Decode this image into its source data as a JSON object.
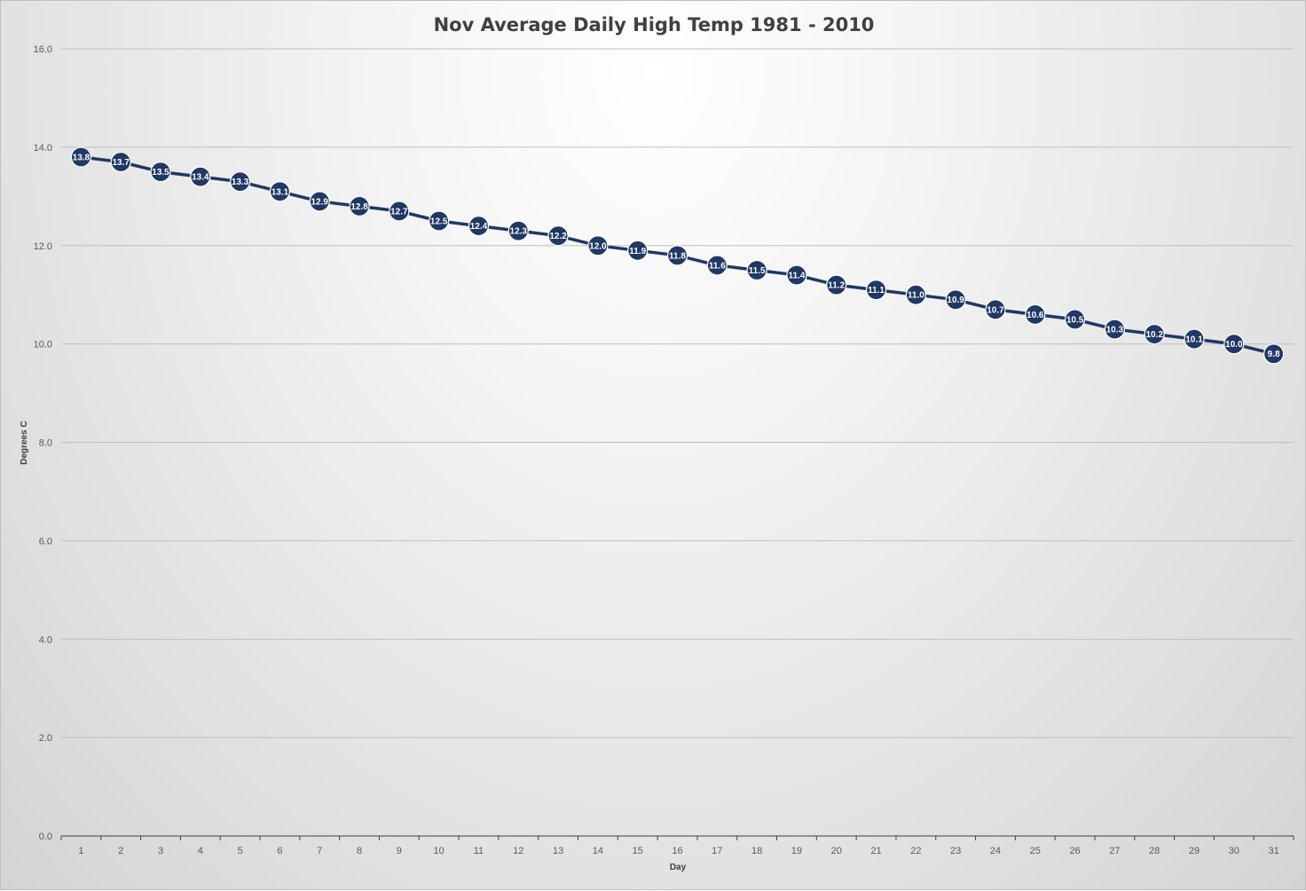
{
  "chart_data": {
    "type": "line",
    "title": "Nov Average Daily High Temp 1981 - 2010",
    "xlabel": "Day",
    "ylabel": "Degrees C",
    "ylim": [
      0,
      16
    ],
    "ytick_step": 2,
    "ytick_labels": [
      "0.0",
      "2.0",
      "4.0",
      "6.0",
      "8.0",
      "10.0",
      "12.0",
      "14.0",
      "16.0"
    ],
    "grid": true,
    "legend": "none",
    "x": [
      1,
      2,
      3,
      4,
      5,
      6,
      7,
      8,
      9,
      10,
      11,
      12,
      13,
      14,
      15,
      16,
      17,
      18,
      19,
      20,
      21,
      22,
      23,
      24,
      25,
      26,
      27,
      28,
      29,
      30,
      31
    ],
    "values": [
      13.8,
      13.7,
      13.5,
      13.4,
      13.3,
      13.1,
      12.9,
      12.8,
      12.7,
      12.5,
      12.4,
      12.3,
      12.2,
      12.0,
      11.9,
      11.8,
      11.6,
      11.5,
      11.4,
      11.2,
      11.1,
      11.0,
      10.9,
      10.7,
      10.6,
      10.5,
      10.3,
      10.2,
      10.1,
      10.0,
      9.8
    ],
    "data_labels": [
      "13.8",
      "13.7",
      "13.5",
      "13.4",
      "13.3",
      "13.1",
      "12.9",
      "12.8",
      "12.7",
      "12.5",
      "12.4",
      "12.3",
      "12.2",
      "12.0",
      "11.9",
      "11.8",
      "11.6",
      "11.5",
      "11.4",
      "11.2",
      "11.1",
      "11.0",
      "10.9",
      "10.7",
      "10.6",
      "10.5",
      "10.3",
      "10.2",
      "10.1",
      "10.0",
      "9.8"
    ],
    "colors": {
      "series": "#1f3864",
      "marker": "#203864",
      "marker_outline": "#ffffff",
      "gridline": "#bfbfbf",
      "axis": "#404040"
    }
  }
}
